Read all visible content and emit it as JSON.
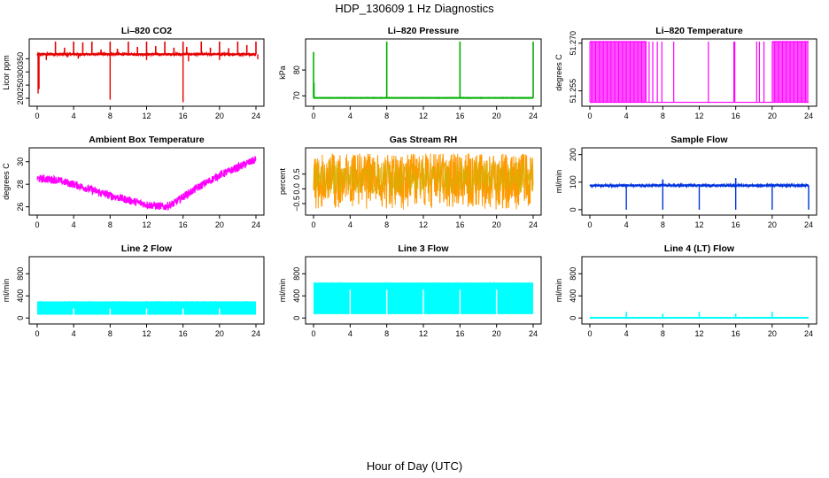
{
  "figure": {
    "title": "HDP_130609  1 Hz Diagnostics",
    "xlabel": "Hour of Day (UTC)"
  },
  "chart_data": [
    {
      "id": "co2",
      "title": "Li–820 CO2",
      "type": "line",
      "color": "#e60000",
      "ylabel": "Licor ppm",
      "xlim": [
        0,
        24
      ],
      "ylim": [
        180,
        415
      ],
      "yticks": [
        200,
        250,
        300,
        350
      ],
      "yticklabels": [
        "200",
        "250",
        "300",
        "350"
      ],
      "xticks": [
        0,
        4,
        8,
        12,
        16,
        20,
        24
      ],
      "baseline": 367,
      "noise": 4,
      "profile": "flat",
      "spikes_up": [
        [
          2,
          415
        ],
        [
          3,
          392
        ],
        [
          4,
          415
        ],
        [
          5,
          412
        ],
        [
          6,
          415
        ],
        [
          7,
          385
        ],
        [
          8,
          415
        ],
        [
          8.8,
          388
        ],
        [
          10,
          415
        ],
        [
          11,
          395
        ],
        [
          12,
          415
        ],
        [
          13,
          398
        ],
        [
          14,
          415
        ],
        [
          15,
          392
        ],
        [
          16,
          415
        ],
        [
          16.4,
          395
        ],
        [
          18,
          415
        ],
        [
          19,
          392
        ],
        [
          20,
          415
        ],
        [
          21,
          390
        ],
        [
          22,
          415
        ],
        [
          23,
          402
        ],
        [
          24,
          415
        ]
      ],
      "spikes_down": [
        [
          0.1,
          218
        ],
        [
          0.2,
          235
        ],
        [
          1,
          345
        ],
        [
          3.3,
          355
        ],
        [
          4.5,
          350
        ],
        [
          8,
          195
        ],
        [
          12,
          345
        ],
        [
          16,
          185
        ],
        [
          16.6,
          340
        ],
        [
          20,
          345
        ],
        [
          24.2,
          348
        ]
      ]
    },
    {
      "id": "pressure",
      "title": "Li–820 Pressure",
      "type": "line",
      "color": "#00b000",
      "ylabel": "kPa",
      "xlim": [
        0,
        24
      ],
      "ylim": [
        67,
        91
      ],
      "yticks": [
        70,
        80
      ],
      "yticklabels": [
        "70",
        "80"
      ],
      "xticks": [
        0,
        4,
        8,
        12,
        16,
        20,
        24
      ],
      "baseline": 69.2,
      "noise": 0.1,
      "profile": "flat",
      "spikes_up": [
        [
          0,
          87
        ],
        [
          0.05,
          75
        ],
        [
          8,
          91
        ],
        [
          16,
          91
        ],
        [
          24,
          91
        ]
      ],
      "spikes_down": []
    },
    {
      "id": "licor_temp",
      "title": "Li–820 Temperature",
      "type": "line",
      "color": "#ff00ff",
      "ylabel": "degrees C",
      "xlim": [
        0,
        24
      ],
      "ylim": [
        51.251,
        51.2705
      ],
      "yticks": [
        51.255,
        51.27
      ],
      "yticklabels": [
        "51.255",
        "51.270"
      ],
      "xticks": [
        0,
        4,
        8,
        12,
        16,
        20,
        24
      ],
      "levels": [
        51.2514,
        51.2705
      ],
      "toggle_segments": [
        [
          0,
          6.2
        ],
        [
          20,
          24
        ]
      ],
      "isolated_spikes": [
        6.5,
        6.9,
        7.4,
        7.9,
        9.2,
        13,
        15.8,
        15.9,
        18.3,
        18.6,
        19.1
      ]
    },
    {
      "id": "box_temp",
      "title": "Ambient Box Temperature",
      "type": "line",
      "color": "#ff00ff",
      "ylabel": "degrees C",
      "xlim": [
        0,
        24
      ],
      "ylim": [
        25.5,
        31
      ],
      "yticks": [
        26,
        28,
        30
      ],
      "yticklabels": [
        "26",
        "28",
        "30"
      ],
      "xticks": [
        0,
        4,
        8,
        12,
        16,
        20,
        24
      ],
      "profile": "curve",
      "noise": 0.35,
      "curve": [
        [
          0,
          28.5
        ],
        [
          2,
          28.4
        ],
        [
          4,
          28.0
        ],
        [
          6,
          27.5
        ],
        [
          8,
          27.0
        ],
        [
          10,
          26.6
        ],
        [
          12,
          26.2
        ],
        [
          14,
          26.0
        ],
        [
          15,
          26.3
        ],
        [
          16,
          26.9
        ],
        [
          18,
          27.9
        ],
        [
          20,
          28.8
        ],
        [
          22,
          29.5
        ],
        [
          24,
          30.2
        ]
      ]
    },
    {
      "id": "rh",
      "title": "Gas Stream RH",
      "type": "line",
      "color": "#ff9900",
      "color2": "#d4b000",
      "ylabel": "percent",
      "xlim": [
        0,
        24
      ],
      "ylim": [
        -0.8,
        1.3
      ],
      "yticks": [
        -0.5,
        0,
        0.5
      ],
      "yticklabels": [
        "−0.5",
        "0.0",
        "0.5"
      ],
      "xticks": [
        0,
        4,
        8,
        12,
        16,
        20,
        24
      ],
      "profile": "band",
      "band": [
        -0.4,
        1.05
      ],
      "noise": 0.25
    },
    {
      "id": "sample_flow",
      "title": "Sample Flow",
      "type": "line",
      "color": "#0033dd",
      "ylabel": "ml/min",
      "xlim": [
        0,
        24
      ],
      "ylim": [
        -10,
        215
      ],
      "yticks": [
        0,
        100,
        200
      ],
      "yticklabels": [
        "0",
        "100",
        "200"
      ],
      "xticks": [
        0,
        4,
        8,
        12,
        16,
        20,
        24
      ],
      "baseline": 88,
      "noise": 4,
      "profile": "flat",
      "spikes_up": [
        [
          8,
          110
        ],
        [
          16,
          115
        ]
      ],
      "spikes_down": [
        [
          4,
          0
        ],
        [
          8,
          0
        ],
        [
          12,
          0
        ],
        [
          16,
          0
        ],
        [
          20,
          0
        ],
        [
          24,
          0
        ]
      ]
    },
    {
      "id": "line2_flow",
      "title": "Line 2 Flow",
      "type": "area",
      "color": "#00ffff",
      "ylabel": "ml/min",
      "xlim": [
        0,
        24
      ],
      "ylim": [
        -60,
        1060
      ],
      "yticks": [
        0,
        400,
        800
      ],
      "yticklabels": [
        "0",
        "400",
        "800"
      ],
      "xticks": [
        0,
        4,
        8,
        12,
        16,
        20,
        24
      ],
      "band_low": 60,
      "band_high": 300,
      "band_start": 0,
      "band_end": 24,
      "gaps": [
        4,
        8,
        12,
        16,
        20
      ]
    },
    {
      "id": "line3_flow",
      "title": "Line 3 Flow",
      "type": "area",
      "color": "#00ffff",
      "ylabel": "ml/min",
      "xlim": [
        0,
        24
      ],
      "ylim": [
        -60,
        1060
      ],
      "yticks": [
        0,
        400,
        800
      ],
      "yticklabels": [
        "0",
        "400",
        "800"
      ],
      "xticks": [
        0,
        4,
        8,
        12,
        16,
        20,
        24
      ],
      "band_low": 70,
      "band_high": 640,
      "band_start": 0,
      "band_end": 24,
      "gaps": [
        4,
        8,
        12,
        16,
        20
      ]
    },
    {
      "id": "line4_flow",
      "title": "Line 4 (LT) Flow",
      "type": "line",
      "color": "#00ffff",
      "ylabel": "ml/min",
      "xlim": [
        0,
        24
      ],
      "ylim": [
        -60,
        1060
      ],
      "yticks": [
        0,
        400,
        800
      ],
      "yticklabels": [
        "0",
        "400",
        "800"
      ],
      "xticks": [
        0,
        4,
        8,
        12,
        16,
        20,
        24
      ],
      "baseline": 5,
      "noise": 1,
      "profile": "flat",
      "spikes_up": [
        [
          4,
          110
        ],
        [
          8,
          80
        ],
        [
          12,
          110
        ],
        [
          16,
          80
        ],
        [
          20,
          110
        ]
      ],
      "spikes_down": []
    }
  ]
}
